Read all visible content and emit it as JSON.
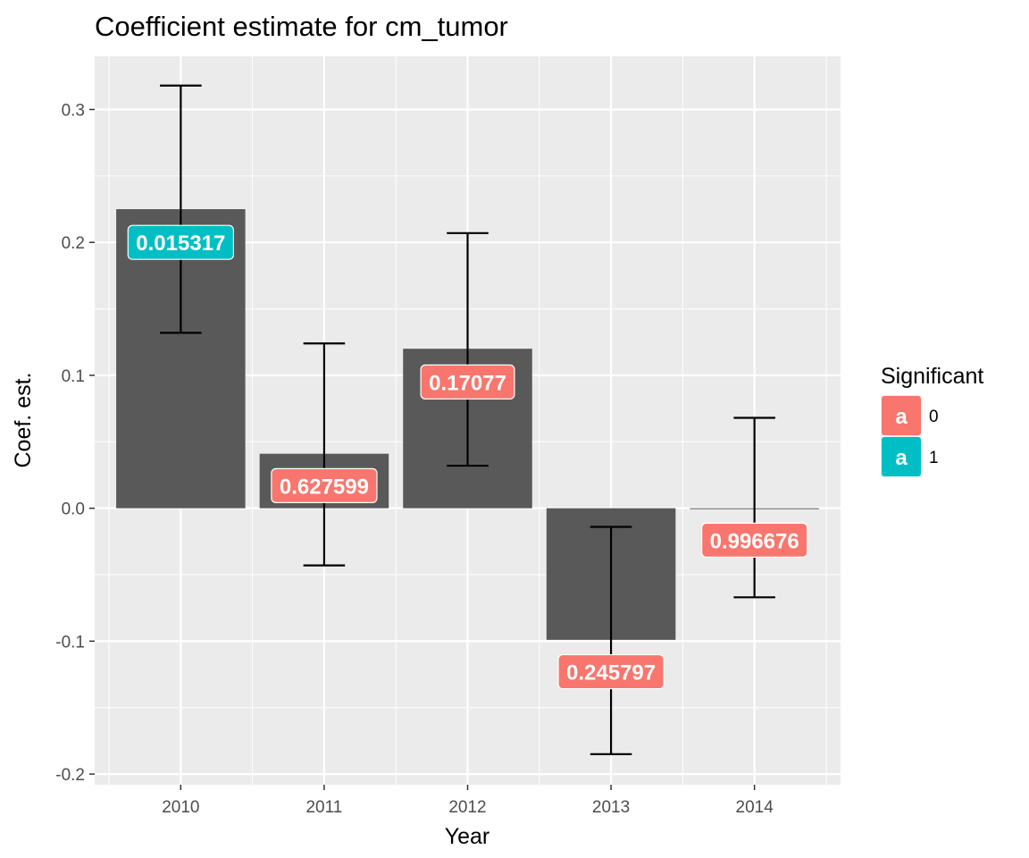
{
  "chart_data": {
    "type": "bar",
    "title": "Coefficient estimate for cm_tumor",
    "xlabel": "Year",
    "ylabel": "Coef. est.",
    "categories": [
      "2010",
      "2011",
      "2012",
      "2013",
      "2014"
    ],
    "values": [
      0.225,
      0.041,
      0.12,
      -0.099,
      -0.0002
    ],
    "error_low": [
      0.132,
      -0.043,
      0.032,
      -0.185,
      -0.067
    ],
    "error_high": [
      0.318,
      0.124,
      0.207,
      -0.014,
      0.068
    ],
    "label_values": [
      "0.015317",
      "0.627599",
      "0.17077",
      "0.245797",
      "0.996676"
    ],
    "label_y": [
      0.2,
      0.017,
      0.095,
      -0.123,
      -0.024
    ],
    "significant": [
      "1",
      "0",
      "0",
      "0",
      "0"
    ],
    "ylim": [
      -0.208,
      0.34
    ],
    "yticks": [
      -0.2,
      -0.1,
      0.0,
      0.1,
      0.2,
      0.3
    ],
    "ytick_labels": [
      "-0.2",
      "-0.1",
      "0.0",
      "0.1",
      "0.2",
      "0.3"
    ],
    "grid": true,
    "legend": {
      "title": "Significant",
      "position": "right",
      "key_letter": "a",
      "entries": [
        {
          "label": "0",
          "color": "#F8766D"
        },
        {
          "label": "1",
          "color": "#00BFC4"
        }
      ]
    },
    "colors": {
      "bar": "#595959",
      "panel": "#EBEBEB",
      "grid": "#FFFFFF",
      "errorbar": "#000000"
    }
  }
}
